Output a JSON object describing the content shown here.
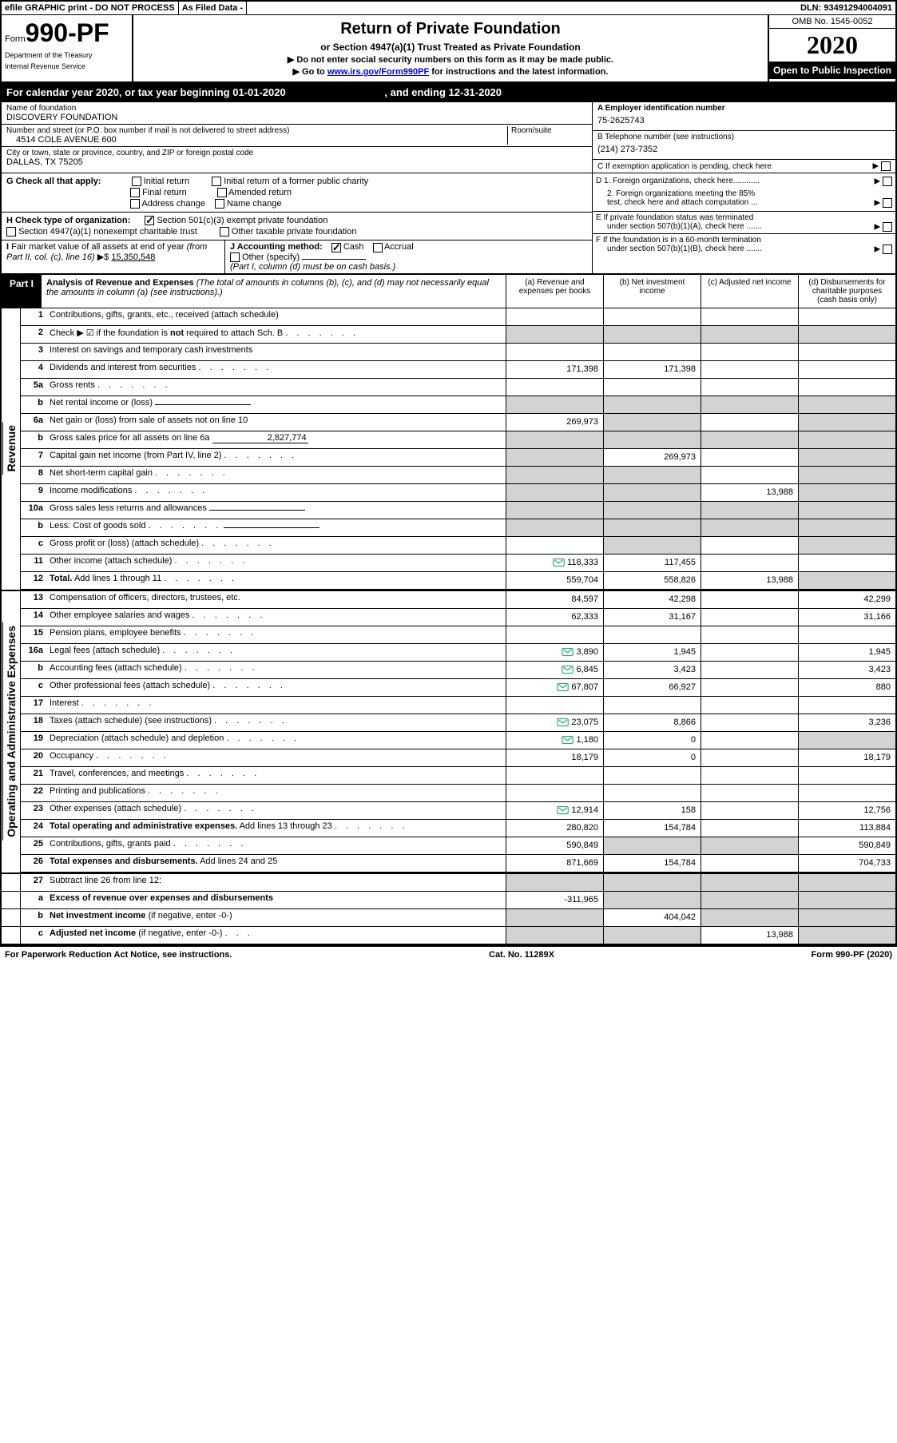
{
  "top": {
    "efile": "efile GRAPHIC print - DO NOT PROCESS",
    "asfiled": "As Filed Data -",
    "dln": "DLN: 93491294004091"
  },
  "header": {
    "form_prefix": "Form",
    "form_num": "990-PF",
    "dept1": "Department of the Treasury",
    "dept2": "Internal Revenue Service",
    "title": "Return of Private Foundation",
    "subtitle": "or Section 4947(a)(1) Trust Treated as Private Foundation",
    "instr1": "▶ Do not enter social security numbers on this form as it may be made public.",
    "instr2_pre": "▶ Go to ",
    "instr2_link": "www.irs.gov/Form990PF",
    "instr2_post": " for instructions and the latest information.",
    "omb": "OMB No. 1545-0052",
    "year": "2020",
    "inspection": "Open to Public Inspection"
  },
  "cal": {
    "text_pre": "For calendar year 2020, or tax year beginning 01-01-2020",
    "text_mid": ", and ending 12-31-2020"
  },
  "info": {
    "name_label": "Name of foundation",
    "name": "DISCOVERY FOUNDATION",
    "addr_label": "Number and street (or P.O. box number if mail is not delivered to street address)",
    "addr": "4514 COLE AVENUE 600",
    "room_label": "Room/suite",
    "city_label": "City or town, state or province, country, and ZIP or foreign postal code",
    "city": "DALLAS, TX  75205",
    "a_label": "A Employer identification number",
    "a_val": "75-2625743",
    "b_label": "B Telephone number (see instructions)",
    "b_val": "(214) 273-7352",
    "c_label": "C If exemption application is pending, check here"
  },
  "g": {
    "label": "G Check all that apply:",
    "o1": "Initial return",
    "o2": "Initial return of a former public charity",
    "o3": "Final return",
    "o4": "Amended return",
    "o5": "Address change",
    "o6": "Name change"
  },
  "h": {
    "label": "H Check type of organization:",
    "o1": "Section 501(c)(3) exempt private foundation",
    "o2": "Section 4947(a)(1) nonexempt charitable trust",
    "o3": "Other taxable private foundation"
  },
  "d": {
    "d1": "D 1. Foreign organizations, check here............",
    "d2a": "2. Foreign organizations meeting the 85%",
    "d2b": "test, check here and attach computation ...",
    "e1": "E  If private foundation status was terminated",
    "e2": "under section 507(b)(1)(A), check here .......",
    "f1": "F  If the foundation is in a 60-month termination",
    "f2": "under section 507(b)(1)(B), check here ......."
  },
  "i": {
    "label": "I Fair market value of all assets at end of year (from Part II, col. (c), line 16) ▶$ ",
    "val": "15,350,548",
    "j_label": "J Accounting method:",
    "j1": "Cash",
    "j2": "Accrual",
    "j3": "Other (specify)",
    "j_note": "(Part I, column (d) must be on cash basis.)"
  },
  "part1": {
    "label": "Part I",
    "title": "Analysis of Revenue and Expenses",
    "note": " (The total of amounts in columns (b), (c), and (d) may not necessarily equal the amounts in column (a) (see instructions).)",
    "col_a": "(a)    Revenue and expenses per books",
    "col_b": "(b)   Net investment income",
    "col_c": "(c)   Adjusted net income",
    "col_d": "(d)   Disbursements for charitable purposes (cash basis only)"
  },
  "sides": {
    "revenue": "Revenue",
    "expenses": "Operating and Administrative Expenses"
  },
  "lines": [
    {
      "n": "1",
      "d": "Contributions, gifts, grants, etc., received (attach schedule)",
      "a": "",
      "b": "",
      "c": "",
      "dv": "",
      "icon": false,
      "grayD": false
    },
    {
      "n": "2",
      "d": "Check ▶ ☑ if the foundation is <b>not</b> required to attach Sch. B",
      "dots": true,
      "a": "",
      "b": "",
      "c": "",
      "dv": "",
      "grayA": true,
      "grayB": true,
      "grayC": true,
      "grayD": true
    },
    {
      "n": "3",
      "d": "Interest on savings and temporary cash investments",
      "a": "",
      "b": "",
      "c": "",
      "dv": ""
    },
    {
      "n": "4",
      "d": "Dividends and interest from securities",
      "dots": true,
      "a": "171,398",
      "b": "171,398",
      "c": "",
      "dv": ""
    },
    {
      "n": "5a",
      "d": "Gross rents",
      "dots": true,
      "a": "",
      "b": "",
      "c": "",
      "dv": ""
    },
    {
      "n": "b",
      "d": "Net rental income or (loss)",
      "inline": "",
      "a": "",
      "b": "",
      "c": "",
      "dv": "",
      "grayA": true,
      "grayB": true,
      "grayC": true,
      "grayD": true
    },
    {
      "n": "6a",
      "d": "Net gain or (loss) from sale of assets not on line 10",
      "a": "269,973",
      "b": "",
      "c": "",
      "dv": "",
      "grayB": true,
      "grayD": true
    },
    {
      "n": "b",
      "d": "Gross sales price for all assets on line 6a",
      "inline": "2,827,774",
      "a": "",
      "b": "",
      "c": "",
      "dv": "",
      "grayA": true,
      "grayB": true,
      "grayC": true,
      "grayD": true
    },
    {
      "n": "7",
      "d": "Capital gain net income (from Part IV, line 2)",
      "dots": true,
      "a": "",
      "b": "269,973",
      "c": "",
      "dv": "",
      "grayA": true,
      "grayD": true
    },
    {
      "n": "8",
      "d": "Net short-term capital gain",
      "dots": true,
      "a": "",
      "b": "",
      "c": "",
      "dv": "",
      "grayA": true,
      "grayB": true,
      "grayD": true
    },
    {
      "n": "9",
      "d": "Income modifications",
      "dots": true,
      "a": "",
      "b": "",
      "c": "13,988",
      "dv": "",
      "grayA": true,
      "grayB": true,
      "grayD": true
    },
    {
      "n": "10a",
      "d": "Gross sales less returns and allowances",
      "inline": "",
      "a": "",
      "b": "",
      "c": "",
      "dv": "",
      "grayA": true,
      "grayB": true,
      "grayC": true,
      "grayD": true
    },
    {
      "n": "b",
      "d": "Less: Cost of goods sold",
      "dots": true,
      "inline": "",
      "a": "",
      "b": "",
      "c": "",
      "dv": "",
      "grayA": true,
      "grayB": true,
      "grayC": true,
      "grayD": true
    },
    {
      "n": "c",
      "d": "Gross profit or (loss) (attach schedule)",
      "dots": true,
      "a": "",
      "b": "",
      "c": "",
      "dv": "",
      "grayB": true,
      "grayD": true
    },
    {
      "n": "11",
      "d": "Other income (attach schedule)",
      "dots": true,
      "icon": true,
      "a": "118,333",
      "b": "117,455",
      "c": "",
      "dv": ""
    },
    {
      "n": "12",
      "d": "<b>Total.</b> Add lines 1 through 11",
      "dots": true,
      "a": "559,704",
      "b": "558,826",
      "c": "13,988",
      "dv": "",
      "grayD": true
    }
  ],
  "exp_lines": [
    {
      "n": "13",
      "d": "Compensation of officers, directors, trustees, etc.",
      "a": "84,597",
      "b": "42,298",
      "c": "",
      "dv": "42,299"
    },
    {
      "n": "14",
      "d": "Other employee salaries and wages",
      "dots": true,
      "a": "62,333",
      "b": "31,167",
      "c": "",
      "dv": "31,166"
    },
    {
      "n": "15",
      "d": "Pension plans, employee benefits",
      "dots": true,
      "a": "",
      "b": "",
      "c": "",
      "dv": ""
    },
    {
      "n": "16a",
      "d": "Legal fees (attach schedule)",
      "dots": true,
      "icon": true,
      "a": "3,890",
      "b": "1,945",
      "c": "",
      "dv": "1,945"
    },
    {
      "n": "b",
      "d": "Accounting fees (attach schedule)",
      "dots": true,
      "icon": true,
      "a": "6,845",
      "b": "3,423",
      "c": "",
      "dv": "3,423"
    },
    {
      "n": "c",
      "d": "Other professional fees (attach schedule)",
      "dots": true,
      "icon": true,
      "a": "67,807",
      "b": "66,927",
      "c": "",
      "dv": "880"
    },
    {
      "n": "17",
      "d": "Interest",
      "dots": true,
      "a": "",
      "b": "",
      "c": "",
      "dv": ""
    },
    {
      "n": "18",
      "d": "Taxes (attach schedule) (see instructions)",
      "dots": true,
      "icon": true,
      "a": "23,075",
      "b": "8,866",
      "c": "",
      "dv": "3,236"
    },
    {
      "n": "19",
      "d": "Depreciation (attach schedule) and depletion",
      "dots": true,
      "icon": true,
      "a": "1,180",
      "b": "0",
      "c": "",
      "dv": "",
      "grayD": true
    },
    {
      "n": "20",
      "d": "Occupancy",
      "dots": true,
      "a": "18,179",
      "b": "0",
      "c": "",
      "dv": "18,179"
    },
    {
      "n": "21",
      "d": "Travel, conferences, and meetings",
      "dots": true,
      "a": "",
      "b": "",
      "c": "",
      "dv": ""
    },
    {
      "n": "22",
      "d": "Printing and publications",
      "dots": true,
      "a": "",
      "b": "",
      "c": "",
      "dv": ""
    },
    {
      "n": "23",
      "d": "Other expenses (attach schedule)",
      "dots": true,
      "icon": true,
      "a": "12,914",
      "b": "158",
      "c": "",
      "dv": "12,756"
    },
    {
      "n": "24",
      "d": "<b>Total operating and administrative expenses.</b> Add lines 13 through 23",
      "dots": true,
      "a": "280,820",
      "b": "154,784",
      "c": "",
      "dv": "113,884"
    },
    {
      "n": "25",
      "d": "Contributions, gifts, grants paid",
      "dots": true,
      "a": "590,849",
      "b": "",
      "c": "",
      "dv": "590,849",
      "grayB": true,
      "grayC": true
    },
    {
      "n": "26",
      "d": "<b>Total expenses and disbursements.</b> Add lines 24 and 25",
      "a": "871,669",
      "b": "154,784",
      "c": "",
      "dv": "704,733"
    }
  ],
  "bottom_lines": [
    {
      "n": "27",
      "d": "Subtract line 26 from line 12:",
      "a": "",
      "b": "",
      "c": "",
      "dv": "",
      "grayA": true,
      "grayB": true,
      "grayC": true,
      "grayD": true
    },
    {
      "n": "a",
      "d": "<b>Excess of revenue over expenses and disbursements</b>",
      "a": "-311,965",
      "b": "",
      "c": "",
      "dv": "",
      "grayB": true,
      "grayC": true,
      "grayD": true
    },
    {
      "n": "b",
      "d": "<b>Net investment income</b> (if negative, enter -0-)",
      "a": "",
      "b": "404,042",
      "c": "",
      "dv": "",
      "grayA": true,
      "grayC": true,
      "grayD": true
    },
    {
      "n": "c",
      "d": "<b>Adjusted net income</b> (if negative, enter -0-)",
      "dots": true,
      "a": "",
      "b": "",
      "c": "13,988",
      "dv": "",
      "grayA": true,
      "grayB": true,
      "grayD": true
    }
  ],
  "footer": {
    "left": "For Paperwork Reduction Act Notice, see instructions.",
    "mid": "Cat. No. 11289X",
    "right": "Form 990-PF (2020)"
  },
  "colors": {
    "black": "#000000",
    "gray": "#d3d3d3",
    "link": "#0000ee"
  }
}
